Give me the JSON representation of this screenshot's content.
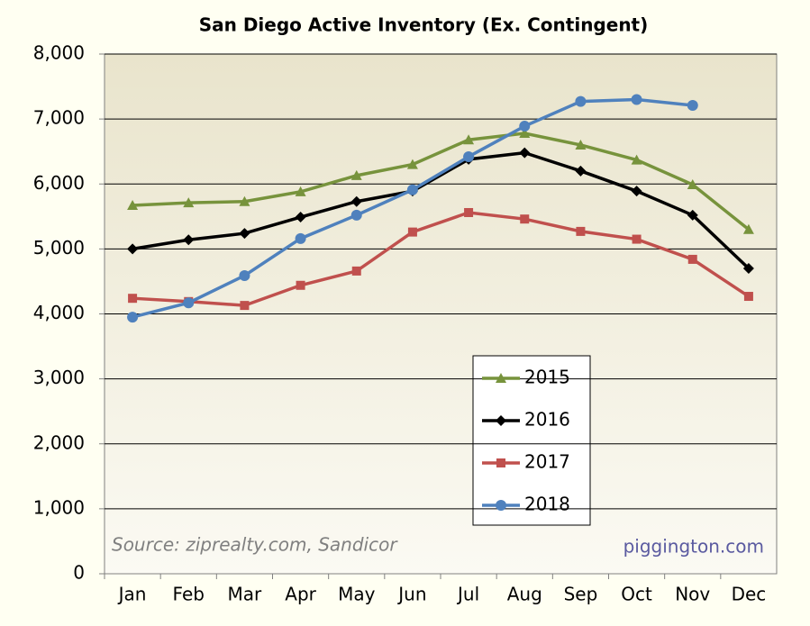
{
  "chart_data": {
    "type": "line",
    "title": "San Diego Active Inventory (Ex. Contingent)",
    "categories": [
      "Jan",
      "Feb",
      "Mar",
      "Apr",
      "May",
      "Jun",
      "Jul",
      "Aug",
      "Sep",
      "Oct",
      "Nov",
      "Dec"
    ],
    "series": [
      {
        "name": "2015",
        "color": "#77933c",
        "marker": "triangle",
        "values": [
          5670,
          5710,
          5730,
          5880,
          6130,
          6300,
          6680,
          6780,
          6600,
          6370,
          5990,
          5300
        ]
      },
      {
        "name": "2016",
        "color": "#000000",
        "marker": "diamond",
        "values": [
          5000,
          5140,
          5240,
          5490,
          5730,
          5890,
          6380,
          6480,
          6200,
          5890,
          5520,
          4700
        ]
      },
      {
        "name": "2017",
        "color": "#c0504d",
        "marker": "square",
        "values": [
          4240,
          4190,
          4130,
          4440,
          4660,
          5260,
          5560,
          5460,
          5270,
          5150,
          4840,
          4270
        ]
      },
      {
        "name": "2018",
        "color": "#4f81bd",
        "marker": "circle",
        "values": [
          3950,
          4170,
          4590,
          5160,
          5520,
          5910,
          6420,
          6890,
          7270,
          7300,
          7210,
          null
        ]
      }
    ],
    "ylim": [
      0,
      8000
    ],
    "yticks": [
      0,
      {
        "value": 1000,
        "label": "1,000"
      },
      {
        "value": 2000,
        "label": "2,000"
      },
      {
        "value": 3000,
        "label": "3,000"
      },
      {
        "value": 4000,
        "label": "4,000"
      },
      {
        "value": 5000,
        "label": "5,000"
      },
      {
        "value": 6000,
        "label": "6,000"
      },
      {
        "value": 7000,
        "label": "7,000"
      },
      {
        "value": 8000,
        "label": "8,000"
      }
    ],
    "grid": true,
    "annotations": [
      "Source: ziprealty.com, Sandicor",
      "piggington.com"
    ]
  }
}
